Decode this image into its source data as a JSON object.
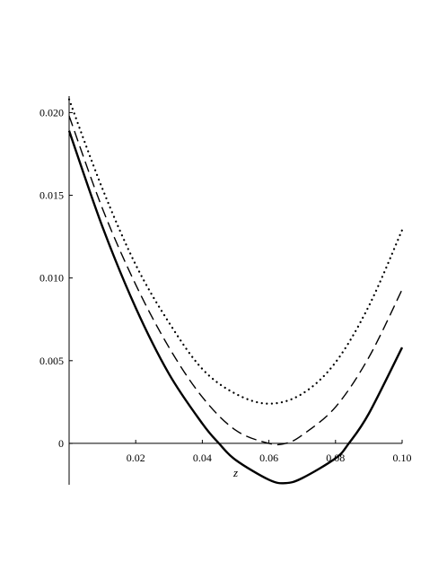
{
  "chart_data": {
    "type": "line",
    "xlabel": "z",
    "ylabel": "",
    "xlim": [
      0.0,
      0.1
    ],
    "ylim": [
      -0.0025,
      0.021
    ],
    "x_ticks": [
      {
        "value": 0.02,
        "label": "0.02"
      },
      {
        "value": 0.04,
        "label": "0.04"
      },
      {
        "value": 0.06,
        "label": "0.06"
      },
      {
        "value": 0.08,
        "label": "0.08"
      },
      {
        "value": 0.1,
        "label": "0.10"
      }
    ],
    "y_ticks": [
      {
        "value": 0.0,
        "label": "0"
      },
      {
        "value": 0.005,
        "label": "0.005"
      },
      {
        "value": 0.01,
        "label": "0.010"
      },
      {
        "value": 0.015,
        "label": "0.015"
      },
      {
        "value": 0.02,
        "label": "0.020"
      }
    ],
    "grid": false,
    "series": [
      {
        "style": "dotted",
        "color": "#000000",
        "points": [
          [
            0.0,
            0.0208
          ],
          [
            0.01,
            0.0154
          ],
          [
            0.02,
            0.0108
          ],
          [
            0.03,
            0.0073
          ],
          [
            0.04,
            0.0045
          ],
          [
            0.05,
            0.003
          ],
          [
            0.06,
            0.0024
          ],
          [
            0.07,
            0.003
          ],
          [
            0.08,
            0.0049
          ],
          [
            0.09,
            0.0083
          ],
          [
            0.1,
            0.0129
          ]
        ]
      },
      {
        "style": "dashed",
        "color": "#000000",
        "points": [
          [
            0.0,
            0.0198
          ],
          [
            0.01,
            0.0142
          ],
          [
            0.02,
            0.0096
          ],
          [
            0.03,
            0.0058
          ],
          [
            0.04,
            0.0028
          ],
          [
            0.05,
            0.0008
          ],
          [
            0.06,
            0.0
          ],
          [
            0.065,
            0.0
          ],
          [
            0.07,
            0.0005
          ],
          [
            0.08,
            0.0022
          ],
          [
            0.09,
            0.0052
          ],
          [
            0.1,
            0.0093
          ]
        ]
      },
      {
        "style": "solid",
        "color": "#000000",
        "points": [
          [
            0.0,
            0.0189
          ],
          [
            0.01,
            0.0131
          ],
          [
            0.02,
            0.0082
          ],
          [
            0.03,
            0.0042
          ],
          [
            0.04,
            0.0012
          ],
          [
            0.045,
            0.0
          ],
          [
            0.05,
            -0.001
          ],
          [
            0.06,
            -0.0022
          ],
          [
            0.065,
            -0.0024
          ],
          [
            0.07,
            -0.0021
          ],
          [
            0.08,
            -0.0009
          ],
          [
            0.084,
            0.0
          ],
          [
            0.09,
            0.0018
          ],
          [
            0.1,
            0.0058
          ]
        ]
      }
    ]
  }
}
